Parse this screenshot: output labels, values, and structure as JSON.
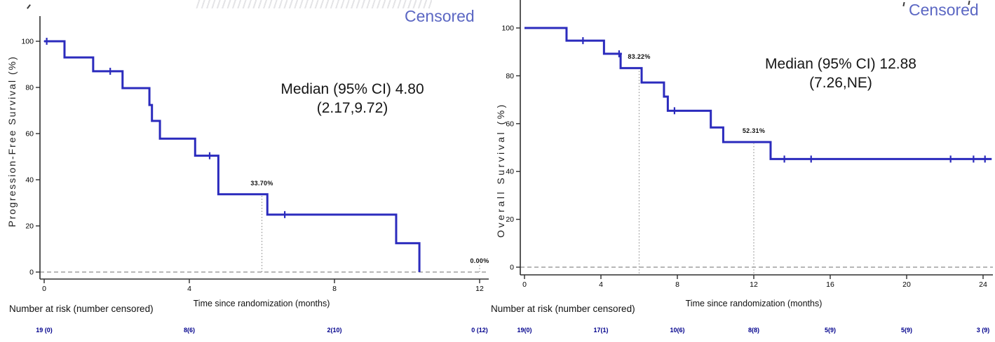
{
  "legend_color": "#5b67c3",
  "curve_color": "#2b2bbd",
  "risk_number_color": "#00008c",
  "chart_data": [
    {
      "type": "line",
      "km_step": true,
      "ylabel": "Progression-Free Survival (%)",
      "xlabel": "Time since randomization (months)",
      "legend": "Censored",
      "median_label": "Median (95% CI) 4.80",
      "median_ci": "(2.17,9.72)",
      "risk_header": "Number at risk (number censored)",
      "xticks": [
        0,
        4,
        8,
        12
      ],
      "yticks": [
        0,
        20,
        40,
        60,
        80,
        100
      ],
      "xlim": [
        0,
        12.3
      ],
      "ylim": [
        0,
        100
      ],
      "grid": false,
      "legend_position": "top-right",
      "steps": [
        [
          0,
          100
        ],
        [
          0.56,
          93
        ],
        [
          1.35,
          87
        ],
        [
          2.16,
          79.7
        ],
        [
          2.9,
          72.4
        ],
        [
          2.97,
          65.5
        ],
        [
          3.19,
          57.8
        ],
        [
          4.16,
          50.4
        ],
        [
          4.8,
          33.7
        ],
        [
          6.15,
          24.9
        ],
        [
          9.7,
          12.5
        ],
        [
          10.34,
          0
        ]
      ],
      "end_month": 10.34,
      "censor_marks": [
        [
          0.07,
          100
        ],
        [
          1.82,
          87
        ],
        [
          4.56,
          50.4
        ],
        [
          6.63,
          24.9
        ]
      ],
      "ref_lines": [
        {
          "month": 6,
          "pct": 33.7,
          "label": "33.70%"
        },
        {
          "month": 12,
          "pct": 0,
          "label": "0.00%"
        }
      ],
      "number_at_risk": [
        {
          "month": 0,
          "label": "19 (0)"
        },
        {
          "month": 4,
          "label": "8(6)"
        },
        {
          "month": 8,
          "label": "2(10)"
        },
        {
          "month": 12,
          "label": "0 (12)"
        }
      ]
    },
    {
      "type": "line",
      "km_step": true,
      "ylabel": "Overall Survival (%)",
      "xlabel": "Time since randomization (months)",
      "legend": "Censored",
      "median_label": "Median (95% CI) 12.88",
      "median_ci": "(7.26,NE)",
      "risk_header": "Number at risk (number censored)",
      "xticks": [
        0,
        4,
        8,
        12,
        16,
        20,
        24
      ],
      "yticks": [
        0,
        20,
        40,
        60,
        80,
        100
      ],
      "xlim": [
        0,
        24.5
      ],
      "ylim": [
        0,
        100
      ],
      "grid": false,
      "legend_position": "top-right",
      "steps": [
        [
          0,
          100
        ],
        [
          2.2,
          94.7
        ],
        [
          4.16,
          89.2
        ],
        [
          5.03,
          83.22
        ],
        [
          6.13,
          77.2
        ],
        [
          7.3,
          71.3
        ],
        [
          7.5,
          65.4
        ],
        [
          9.75,
          58.4
        ],
        [
          10.4,
          52.31
        ],
        [
          12.88,
          45.2
        ]
      ],
      "end_month": 24.45,
      "censor_marks": [
        [
          3.06,
          94.7
        ],
        [
          4.95,
          89.2
        ],
        [
          7.85,
          65.4
        ],
        [
          13.6,
          45.2
        ],
        [
          15.0,
          45.2
        ],
        [
          22.3,
          45.2
        ],
        [
          23.5,
          45.2
        ],
        [
          24.1,
          45.2
        ]
      ],
      "ref_lines": [
        {
          "month": 6,
          "pct": 83.22,
          "label": "83.22%"
        },
        {
          "month": 12,
          "pct": 52.31,
          "label": "52.31%"
        }
      ],
      "number_at_risk": [
        {
          "month": 0,
          "label": "19(0)"
        },
        {
          "month": 4,
          "label": "17(1)"
        },
        {
          "month": 8,
          "label": "10(6)"
        },
        {
          "month": 12,
          "label": "8(8)"
        },
        {
          "month": 16,
          "label": "5(9)"
        },
        {
          "month": 20,
          "label": "5(9)"
        },
        {
          "month": 24,
          "label": "3 (9)"
        }
      ]
    }
  ]
}
